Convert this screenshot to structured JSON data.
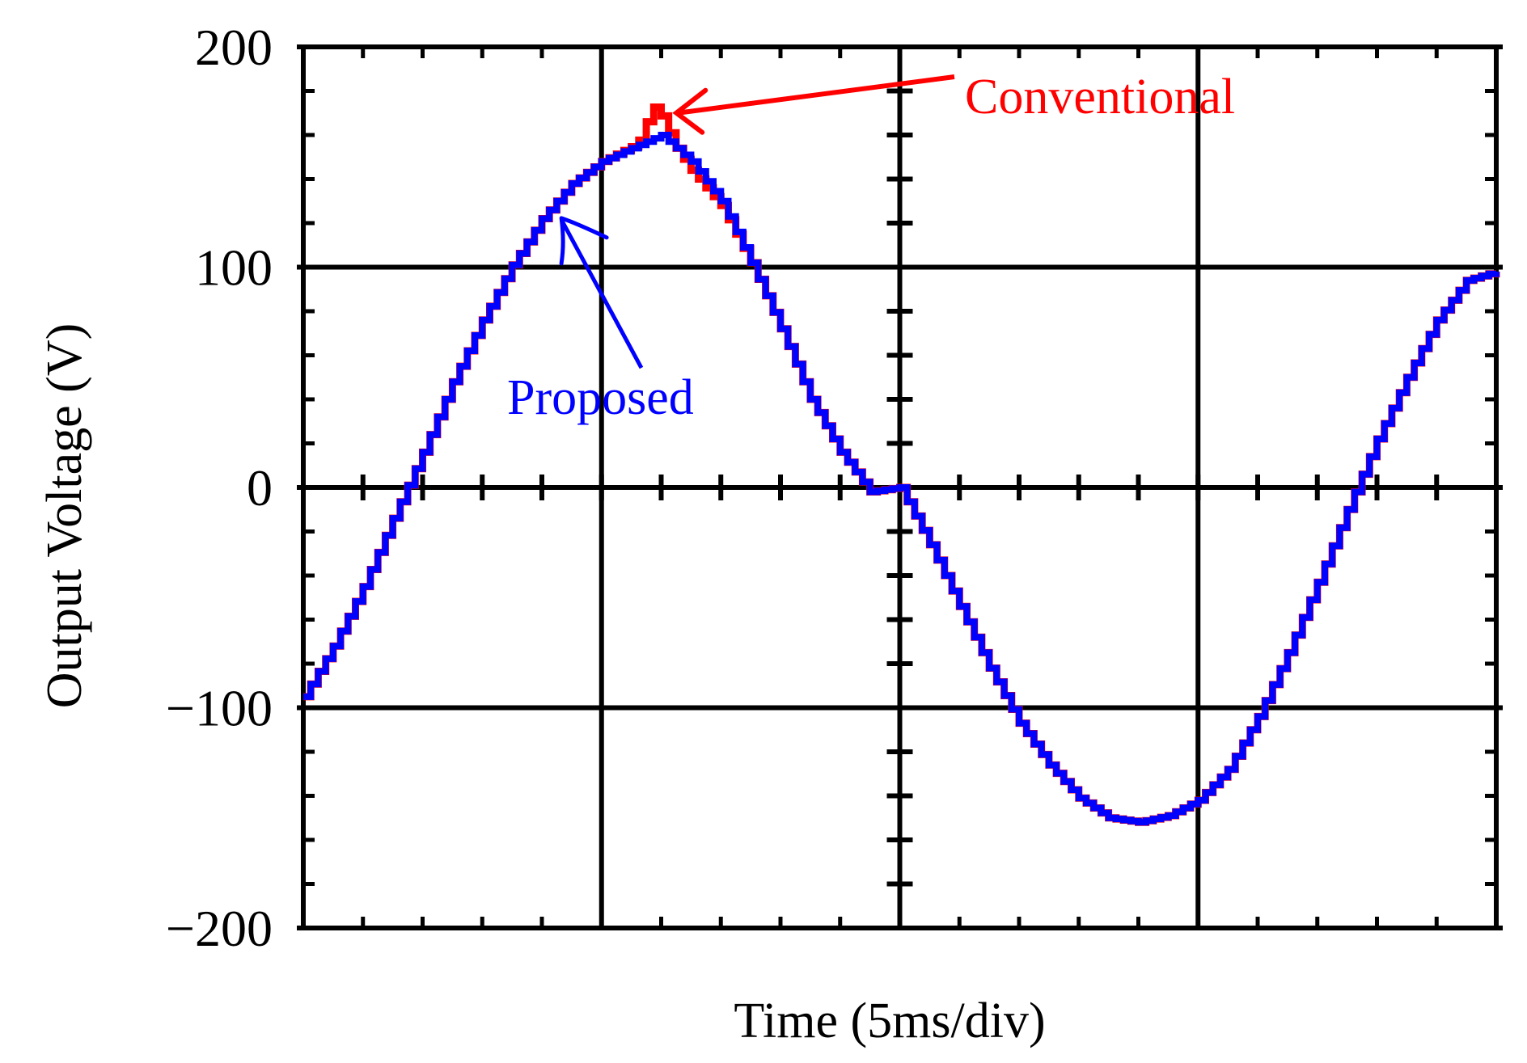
{
  "chart_data": {
    "type": "line",
    "title": "",
    "xlabel": "Time (5ms/div)",
    "ylabel": "Output Voltage (V)",
    "x_unit": "ms",
    "xlim": [
      0,
      20
    ],
    "ylim": [
      -200,
      200
    ],
    "x_ticks": [
      0,
      5,
      10,
      15,
      20
    ],
    "x_tick_labels": [
      "",
      "",
      "",
      "",
      ""
    ],
    "y_ticks": [
      200,
      100,
      0,
      -100,
      -200
    ],
    "y_tick_labels": [
      "200",
      "100",
      "0",
      "−100",
      "−200"
    ],
    "grid": true,
    "colors": {
      "axes": "#000000",
      "conventional": "#ff0000",
      "proposed": "#0000ff"
    },
    "series": [
      {
        "name": "Conventional",
        "color": "#ff0000",
        "x": [
          0,
          0.5,
          1,
          1.5,
          2,
          2.5,
          3,
          3.5,
          4,
          4.5,
          5,
          5.3,
          5.6,
          5.75,
          5.9,
          6.05,
          6.2,
          6.5,
          7,
          7.5,
          8,
          8.5,
          9,
          9.5,
          10,
          10.5,
          11,
          11.5,
          12,
          12.5,
          13,
          13.5,
          14,
          14.5,
          15,
          15.5,
          16,
          16.5,
          17,
          17.5,
          18,
          18.5,
          19,
          19.5,
          20
        ],
        "y": [
          -95,
          -72,
          -45,
          -14,
          16,
          48,
          76,
          101,
          122,
          138,
          148,
          152,
          156,
          166,
          174,
          166,
          156,
          144,
          128,
          102,
          72,
          40,
          16,
          -2,
          0,
          -26,
          -54,
          -82,
          -107,
          -126,
          -141,
          -150,
          -152,
          -149,
          -142,
          -128,
          -104,
          -75,
          -43,
          -10,
          22,
          50,
          76,
          94,
          98
        ]
      },
      {
        "name": "Proposed",
        "color": "#0000ff",
        "x": [
          0,
          0.5,
          1,
          1.5,
          2,
          2.5,
          3,
          3.5,
          4,
          4.5,
          5,
          5.5,
          6,
          6.5,
          7,
          7.5,
          8,
          8.5,
          9,
          9.5,
          10,
          10.5,
          11,
          11.5,
          12,
          12.5,
          13,
          13.5,
          14,
          14.5,
          15,
          15.5,
          16,
          16.5,
          17,
          17.5,
          18,
          18.5,
          19,
          19.5,
          20
        ],
        "y": [
          -95,
          -72,
          -45,
          -14,
          16,
          48,
          76,
          101,
          122,
          138,
          148,
          154,
          160,
          148,
          130,
          102,
          72,
          40,
          16,
          -2,
          0,
          -26,
          -54,
          -82,
          -107,
          -126,
          -141,
          -150,
          -152,
          -149,
          -142,
          -128,
          -104,
          -75,
          -43,
          -10,
          22,
          50,
          76,
          94,
          98
        ]
      }
    ],
    "annotations": [
      {
        "text": "Conventional",
        "color": "#ff0000",
        "points_to": {
          "x": 6.2,
          "y": 170
        }
      },
      {
        "text": "Proposed",
        "color": "#0000ff",
        "points_to": {
          "x": 4.3,
          "y": 123
        }
      }
    ]
  }
}
